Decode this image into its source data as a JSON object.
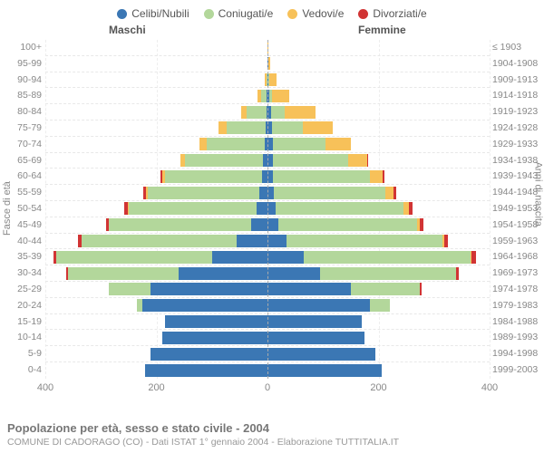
{
  "legend": {
    "items": [
      {
        "label": "Celibi/Nubili",
        "color": "#3b77b4"
      },
      {
        "label": "Coniugati/e",
        "color": "#b3d79b"
      },
      {
        "label": "Vedovi/e",
        "color": "#f7c159"
      },
      {
        "label": "Divorziati/e",
        "color": "#d13434"
      }
    ]
  },
  "header": {
    "maschi": "Maschi",
    "femmine": "Femmine"
  },
  "axis": {
    "left_title": "Fasce di età",
    "right_title": "Anni di nascita",
    "xlim": 400,
    "xticks": [
      400,
      200,
      0,
      200,
      400
    ]
  },
  "colors": {
    "single": "#3b77b4",
    "married": "#b3d79b",
    "widowed": "#f7c159",
    "divorced": "#d13434",
    "grid": "#eeeeee",
    "grid_center": "#aaaaaa"
  },
  "footer": {
    "title": "Popolazione per età, sesso e stato civile - 2004",
    "subtitle": "COMUNE DI CADORAGO (CO) - Dati ISTAT 1° gennaio 2004 - Elaborazione TUTTITALIA.IT"
  },
  "rows": [
    {
      "age": "100+",
      "year": "≤ 1903",
      "m": {
        "s": 0,
        "c": 0,
        "w": 0,
        "d": 0
      },
      "f": {
        "s": 0,
        "c": 0,
        "w": 2,
        "d": 0
      }
    },
    {
      "age": "95-99",
      "year": "1904-1908",
      "m": {
        "s": 0,
        "c": 0,
        "w": 0,
        "d": 0
      },
      "f": {
        "s": 1,
        "c": 0,
        "w": 4,
        "d": 0
      }
    },
    {
      "age": "90-94",
      "year": "1909-1913",
      "m": {
        "s": 0,
        "c": 2,
        "w": 3,
        "d": 0
      },
      "f": {
        "s": 2,
        "c": 1,
        "w": 14,
        "d": 0
      }
    },
    {
      "age": "85-89",
      "year": "1914-1918",
      "m": {
        "s": 2,
        "c": 10,
        "w": 6,
        "d": 0
      },
      "f": {
        "s": 3,
        "c": 5,
        "w": 32,
        "d": 0
      }
    },
    {
      "age": "80-84",
      "year": "1919-1923",
      "m": {
        "s": 2,
        "c": 35,
        "w": 10,
        "d": 0
      },
      "f": {
        "s": 6,
        "c": 25,
        "w": 55,
        "d": 0
      }
    },
    {
      "age": "75-79",
      "year": "1924-1928",
      "m": {
        "s": 3,
        "c": 70,
        "w": 15,
        "d": 0
      },
      "f": {
        "s": 8,
        "c": 55,
        "w": 55,
        "d": 0
      }
    },
    {
      "age": "70-74",
      "year": "1929-1933",
      "m": {
        "s": 5,
        "c": 105,
        "w": 12,
        "d": 0
      },
      "f": {
        "s": 10,
        "c": 95,
        "w": 45,
        "d": 0
      }
    },
    {
      "age": "65-69",
      "year": "1934-1938",
      "m": {
        "s": 8,
        "c": 140,
        "w": 8,
        "d": 0
      },
      "f": {
        "s": 10,
        "c": 135,
        "w": 35,
        "d": 2
      }
    },
    {
      "age": "60-64",
      "year": "1939-1943",
      "m": {
        "s": 10,
        "c": 175,
        "w": 5,
        "d": 3
      },
      "f": {
        "s": 10,
        "c": 175,
        "w": 22,
        "d": 3
      }
    },
    {
      "age": "55-59",
      "year": "1944-1948",
      "m": {
        "s": 15,
        "c": 200,
        "w": 3,
        "d": 5
      },
      "f": {
        "s": 12,
        "c": 200,
        "w": 15,
        "d": 5
      }
    },
    {
      "age": "50-54",
      "year": "1949-1953",
      "m": {
        "s": 20,
        "c": 230,
        "w": 2,
        "d": 6
      },
      "f": {
        "s": 15,
        "c": 230,
        "w": 10,
        "d": 6
      }
    },
    {
      "age": "45-49",
      "year": "1954-1958",
      "m": {
        "s": 30,
        "c": 255,
        "w": 0,
        "d": 5
      },
      "f": {
        "s": 20,
        "c": 250,
        "w": 5,
        "d": 5
      }
    },
    {
      "age": "40-44",
      "year": "1959-1963",
      "m": {
        "s": 55,
        "c": 280,
        "w": 0,
        "d": 7
      },
      "f": {
        "s": 35,
        "c": 280,
        "w": 3,
        "d": 7
      }
    },
    {
      "age": "35-39",
      "year": "1964-1968",
      "m": {
        "s": 100,
        "c": 280,
        "w": 0,
        "d": 6
      },
      "f": {
        "s": 65,
        "c": 300,
        "w": 2,
        "d": 8
      }
    },
    {
      "age": "30-34",
      "year": "1969-1973",
      "m": {
        "s": 160,
        "c": 200,
        "w": 0,
        "d": 3
      },
      "f": {
        "s": 95,
        "c": 245,
        "w": 0,
        "d": 5
      }
    },
    {
      "age": "25-29",
      "year": "1974-1978",
      "m": {
        "s": 210,
        "c": 75,
        "w": 0,
        "d": 0
      },
      "f": {
        "s": 150,
        "c": 125,
        "w": 0,
        "d": 2
      }
    },
    {
      "age": "20-24",
      "year": "1979-1983",
      "m": {
        "s": 225,
        "c": 10,
        "w": 0,
        "d": 0
      },
      "f": {
        "s": 185,
        "c": 35,
        "w": 0,
        "d": 0
      }
    },
    {
      "age": "15-19",
      "year": "1984-1988",
      "m": {
        "s": 185,
        "c": 0,
        "w": 0,
        "d": 0
      },
      "f": {
        "s": 170,
        "c": 0,
        "w": 0,
        "d": 0
      }
    },
    {
      "age": "10-14",
      "year": "1989-1993",
      "m": {
        "s": 190,
        "c": 0,
        "w": 0,
        "d": 0
      },
      "f": {
        "s": 175,
        "c": 0,
        "w": 0,
        "d": 0
      }
    },
    {
      "age": "5-9",
      "year": "1994-1998",
      "m": {
        "s": 210,
        "c": 0,
        "w": 0,
        "d": 0
      },
      "f": {
        "s": 195,
        "c": 0,
        "w": 0,
        "d": 0
      }
    },
    {
      "age": "0-4",
      "year": "1999-2003",
      "m": {
        "s": 220,
        "c": 0,
        "w": 0,
        "d": 0
      },
      "f": {
        "s": 205,
        "c": 0,
        "w": 0,
        "d": 0
      }
    }
  ]
}
